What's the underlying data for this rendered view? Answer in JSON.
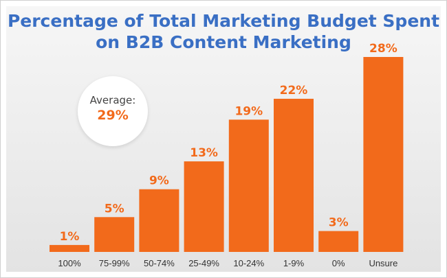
{
  "title": {
    "line1": "Percentage of Total Marketing Budget Spent",
    "line2": "on B2B Content Marketing"
  },
  "average": {
    "label": "Average:",
    "value": "29%"
  },
  "colors": {
    "bar": "#f26a1b",
    "title": "#3a6fc4"
  },
  "chart_data": {
    "type": "bar",
    "categories": [
      "100%",
      "75-99%",
      "50-74%",
      "25-49%",
      "10-24%",
      "1-9%",
      "0%",
      "Unsure"
    ],
    "values": [
      1,
      5,
      9,
      13,
      19,
      22,
      3,
      28
    ],
    "value_labels": [
      "1%",
      "5%",
      "9%",
      "13%",
      "19%",
      "22%",
      "3%",
      "28%"
    ],
    "ylim": [
      0,
      28
    ],
    "grid": false,
    "legend": "none"
  }
}
